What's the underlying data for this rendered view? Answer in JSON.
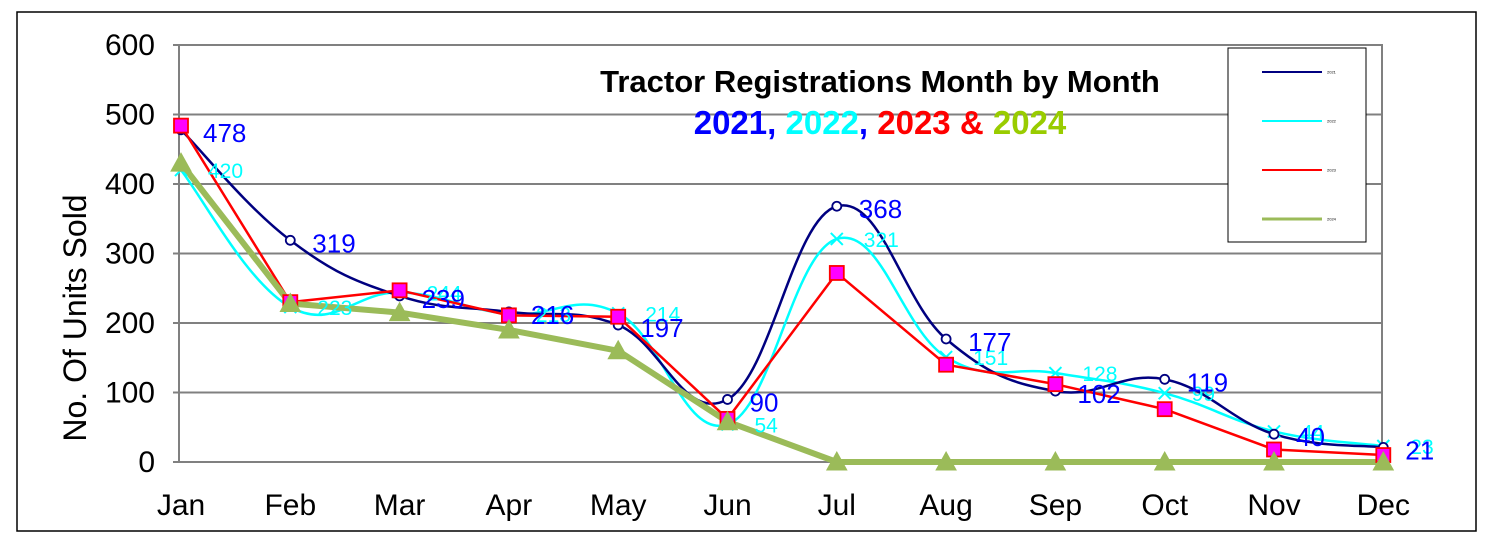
{
  "chart_data": {
    "type": "line",
    "title": "Tractor Registrations Month by Month",
    "subtitle_parts": [
      {
        "text": "2021",
        "color": "#0000ff"
      },
      {
        "text": ", ",
        "color": "#0000ff"
      },
      {
        "text": "2022",
        "color": "#00ffff"
      },
      {
        "text": ", ",
        "color": "#0000ff"
      },
      {
        "text": "2023",
        "color": "#ff0000"
      },
      {
        "text": " & ",
        "color": "#ff0000"
      },
      {
        "text": "2024",
        "color": "#99cc00"
      }
    ],
    "xlabel": "",
    "ylabel": "No. Of Units Sold",
    "categories": [
      "Jan",
      "Feb",
      "Mar",
      "Apr",
      "May",
      "Jun",
      "Jul",
      "Aug",
      "Sep",
      "Oct",
      "Nov",
      "Dec"
    ],
    "ylim": [
      0,
      600
    ],
    "yticks": [
      0,
      100,
      200,
      300,
      400,
      500,
      600
    ],
    "grid": true,
    "legend_position": "top-right",
    "series": [
      {
        "name": "2021",
        "color": "#000080",
        "label_color": "#0000ff",
        "marker": "circle",
        "values": [
          478,
          319,
          239,
          216,
          197,
          90,
          368,
          177,
          102,
          119,
          40,
          21
        ],
        "labels": [
          "478",
          "319",
          "239",
          "216",
          "197",
          "90",
          "368",
          "177",
          "102",
          "119",
          "40",
          "21"
        ]
      },
      {
        "name": "2022",
        "color": "#00ffff",
        "label_color": "#00ffff",
        "marker": "x",
        "values": [
          420,
          223,
          244,
          213,
          214,
          54,
          321,
          151,
          128,
          99,
          44,
          23
        ],
        "labels": [
          "420",
          "223",
          "244",
          "213",
          "214",
          "54",
          "321",
          "151",
          "128",
          "99",
          "44",
          "23"
        ]
      },
      {
        "name": "2023",
        "color": "#ff0000",
        "marker": "square",
        "marker_fill": "#ff00ff",
        "values": [
          484,
          230,
          247,
          211,
          209,
          62,
          272,
          140,
          112,
          76,
          18,
          10
        ]
      },
      {
        "name": "2024",
        "color": "#9bbb59",
        "marker": "triangle",
        "values": [
          430,
          228,
          215,
          190,
          160,
          58,
          0,
          0,
          0,
          0,
          0,
          0
        ]
      }
    ]
  }
}
